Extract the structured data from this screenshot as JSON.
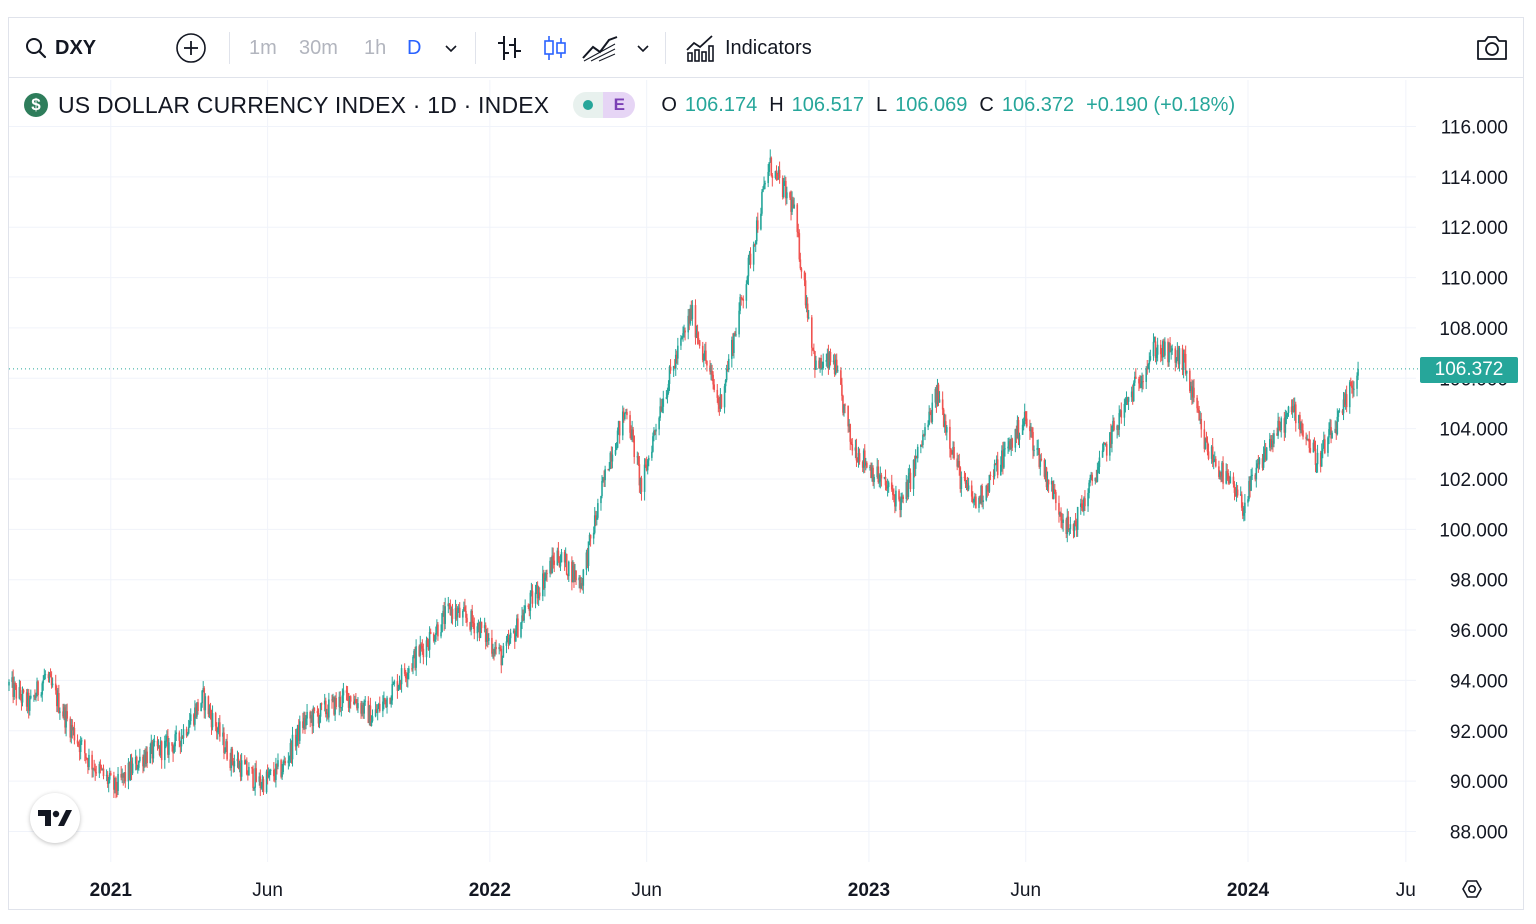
{
  "toolbar": {
    "symbol": "DXY",
    "timeframes": [
      "1m",
      "30m",
      "1h",
      "D"
    ],
    "active_timeframe": "D",
    "indicators_label": "Indicators",
    "icons": [
      "search-icon",
      "add-compare-icon",
      "bar-style-icon",
      "candle-style-icon",
      "line-style-icon",
      "indicators-icon",
      "camera-icon"
    ]
  },
  "legend": {
    "logo_glyph": "$",
    "title": "US DOLLAR CURRENCY INDEX · 1D · INDEX",
    "badge_letter": "E",
    "open_label": "O",
    "open": "106.174",
    "high_label": "H",
    "high": "106.517",
    "low_label": "L",
    "low": "106.069",
    "close_label": "C",
    "close": "106.372",
    "change": "+0.190 (+0.18%)"
  },
  "colors": {
    "up": "#26a69a",
    "down": "#ef5350",
    "accent": "#2962ff",
    "grid": "#f0f3fa"
  },
  "chart_data": {
    "type": "candlestick",
    "title": "US DOLLAR CURRENCY INDEX · 1D · INDEX",
    "interval": "1D",
    "last_price_label": "106.372",
    "last_price": 106.372,
    "y_ticks": [
      "116.000",
      "114.000",
      "112.000",
      "110.000",
      "108.000",
      "106.000",
      "104.000",
      "102.000",
      "100.000",
      "98.000",
      "96.000",
      "94.000",
      "92.000",
      "90.000",
      "88.000"
    ],
    "ylim": [
      87.0,
      116.5
    ],
    "x_ticks": [
      {
        "label": "2021",
        "date": "2021-01-01",
        "bold": true
      },
      {
        "label": "Jun",
        "date": "2021-06-01",
        "bold": false
      },
      {
        "label": "2022",
        "date": "2022-01-01",
        "bold": true
      },
      {
        "label": "Jun",
        "date": "2022-06-01",
        "bold": false
      },
      {
        "label": "2023",
        "date": "2023-01-01",
        "bold": true
      },
      {
        "label": "Jun",
        "date": "2023-06-01",
        "bold": false
      },
      {
        "label": "2024",
        "date": "2024-01-01",
        "bold": true
      },
      {
        "label": "Ju",
        "date": "2024-06-01",
        "bold": false
      }
    ],
    "xlim": [
      "2020-09-25",
      "2024-06-05"
    ],
    "close_path": [
      [
        "2020-09-25",
        93.8
      ],
      [
        "2020-10-15",
        93.0
      ],
      [
        "2020-10-30",
        94.2
      ],
      [
        "2020-11-20",
        92.4
      ],
      [
        "2020-12-10",
        90.9
      ],
      [
        "2021-01-05",
        89.7
      ],
      [
        "2021-02-01",
        91.0
      ],
      [
        "2021-03-05",
        91.5
      ],
      [
        "2021-03-31",
        93.3
      ],
      [
        "2021-04-25",
        91.0
      ],
      [
        "2021-05-25",
        89.9
      ],
      [
        "2021-06-15",
        90.5
      ],
      [
        "2021-07-05",
        92.3
      ],
      [
        "2021-08-20",
        93.4
      ],
      [
        "2021-09-10",
        92.5
      ],
      [
        "2021-10-10",
        94.3
      ],
      [
        "2021-11-24",
        96.8
      ],
      [
        "2021-12-20",
        96.2
      ],
      [
        "2022-01-13",
        94.9
      ],
      [
        "2022-02-01",
        96.5
      ],
      [
        "2022-03-07",
        99.0
      ],
      [
        "2022-03-30",
        97.9
      ],
      [
        "2022-04-27",
        103.0
      ],
      [
        "2022-05-13",
        104.8
      ],
      [
        "2022-05-27",
        101.6
      ],
      [
        "2022-06-14",
        104.9
      ],
      [
        "2022-07-14",
        108.6
      ],
      [
        "2022-08-10",
        104.9
      ],
      [
        "2022-09-05",
        110.0
      ],
      [
        "2022-09-27",
        114.5
      ],
      [
        "2022-10-20",
        112.8
      ],
      [
        "2022-11-11",
        106.4
      ],
      [
        "2022-11-28",
        106.7
      ],
      [
        "2022-12-15",
        103.4
      ],
      [
        "2023-01-15",
        101.8
      ],
      [
        "2023-02-02",
        101.0
      ],
      [
        "2023-03-08",
        105.4
      ],
      [
        "2023-03-31",
        101.9
      ],
      [
        "2023-04-14",
        101.0
      ],
      [
        "2023-05-31",
        104.4
      ],
      [
        "2023-06-23",
        101.9
      ],
      [
        "2023-07-14",
        99.8
      ],
      [
        "2023-08-25",
        104.0
      ],
      [
        "2023-10-03",
        107.2
      ],
      [
        "2023-10-31",
        106.7
      ],
      [
        "2023-11-20",
        103.4
      ],
      [
        "2023-12-27",
        100.9
      ],
      [
        "2024-01-20",
        103.3
      ],
      [
        "2024-02-14",
        104.8
      ],
      [
        "2024-03-08",
        102.7
      ],
      [
        "2024-04-01",
        104.6
      ],
      [
        "2024-04-16",
        106.37
      ]
    ]
  }
}
